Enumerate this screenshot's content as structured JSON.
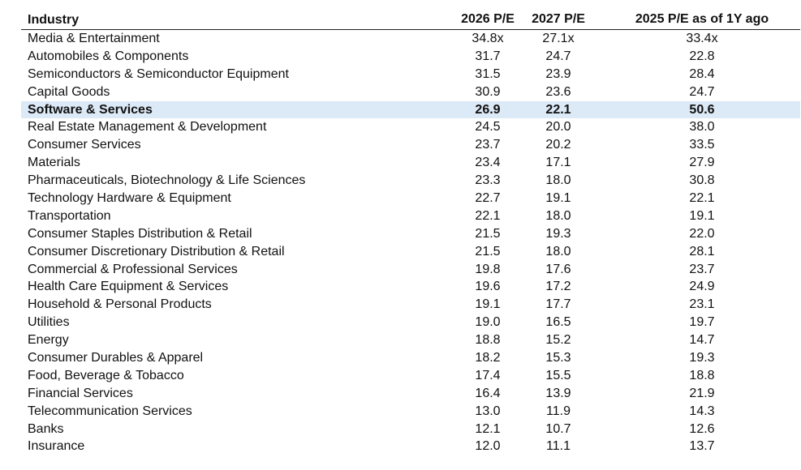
{
  "headers": [
    "Industry",
    "2026 P/E",
    "2027 P/E",
    "2025 P/E as of 1Y ago"
  ],
  "highlight_color": "#dce9f6",
  "rows": [
    {
      "industry": "Media & Entertainment",
      "pe2026": "34.8x",
      "pe2027": "27.1x",
      "pe2025_1y": "33.4x"
    },
    {
      "industry": "Automobiles & Components",
      "pe2026": "31.7",
      "pe2027": "24.7",
      "pe2025_1y": "22.8"
    },
    {
      "industry": "Semiconductors & Semiconductor Equipment",
      "pe2026": "31.5",
      "pe2027": "23.9",
      "pe2025_1y": "28.4"
    },
    {
      "industry": "Capital Goods",
      "pe2026": "30.9",
      "pe2027": "23.6",
      "pe2025_1y": "24.7"
    },
    {
      "industry": "Software & Services",
      "pe2026": "26.9",
      "pe2027": "22.1",
      "pe2025_1y": "50.6",
      "highlighted": true
    },
    {
      "industry": "Real Estate Management & Development",
      "pe2026": "24.5",
      "pe2027": "20.0",
      "pe2025_1y": "38.0"
    },
    {
      "industry": "Consumer Services",
      "pe2026": "23.7",
      "pe2027": "20.2",
      "pe2025_1y": "33.5"
    },
    {
      "industry": "Materials",
      "pe2026": "23.4",
      "pe2027": "17.1",
      "pe2025_1y": "27.9"
    },
    {
      "industry": "Pharmaceuticals, Biotechnology & Life Sciences",
      "pe2026": "23.3",
      "pe2027": "18.0",
      "pe2025_1y": "30.8"
    },
    {
      "industry": "Technology Hardware & Equipment",
      "pe2026": "22.7",
      "pe2027": "19.1",
      "pe2025_1y": "22.1"
    },
    {
      "industry": "Transportation",
      "pe2026": "22.1",
      "pe2027": "18.0",
      "pe2025_1y": "19.1"
    },
    {
      "industry": "Consumer Staples Distribution & Retail",
      "pe2026": "21.5",
      "pe2027": "19.3",
      "pe2025_1y": "22.0"
    },
    {
      "industry": "Consumer Discretionary Distribution & Retail",
      "pe2026": "21.5",
      "pe2027": "18.0",
      "pe2025_1y": "28.1"
    },
    {
      "industry": "Commercial & Professional Services",
      "pe2026": "19.8",
      "pe2027": "17.6",
      "pe2025_1y": "23.7"
    },
    {
      "industry": "Health Care Equipment & Services",
      "pe2026": "19.6",
      "pe2027": "17.2",
      "pe2025_1y": "24.9"
    },
    {
      "industry": "Household & Personal Products",
      "pe2026": "19.1",
      "pe2027": "17.7",
      "pe2025_1y": "23.1"
    },
    {
      "industry": "Utilities",
      "pe2026": "19.0",
      "pe2027": "16.5",
      "pe2025_1y": "19.7"
    },
    {
      "industry": "Energy",
      "pe2026": "18.8",
      "pe2027": "15.2",
      "pe2025_1y": "14.7"
    },
    {
      "industry": "Consumer Durables & Apparel",
      "pe2026": "18.2",
      "pe2027": "15.3",
      "pe2025_1y": "19.3"
    },
    {
      "industry": "Food, Beverage & Tobacco",
      "pe2026": "17.4",
      "pe2027": "15.5",
      "pe2025_1y": "18.8"
    },
    {
      "industry": "Financial Services",
      "pe2026": "16.4",
      "pe2027": "13.9",
      "pe2025_1y": "21.9"
    },
    {
      "industry": "Telecommunication Services",
      "pe2026": "13.0",
      "pe2027": "11.9",
      "pe2025_1y": "14.3"
    },
    {
      "industry": "Banks",
      "pe2026": "12.1",
      "pe2027": "10.7",
      "pe2025_1y": "12.6"
    },
    {
      "industry": "Insurance",
      "pe2026": "12.0",
      "pe2027": "11.1",
      "pe2025_1y": "13.7"
    }
  ]
}
